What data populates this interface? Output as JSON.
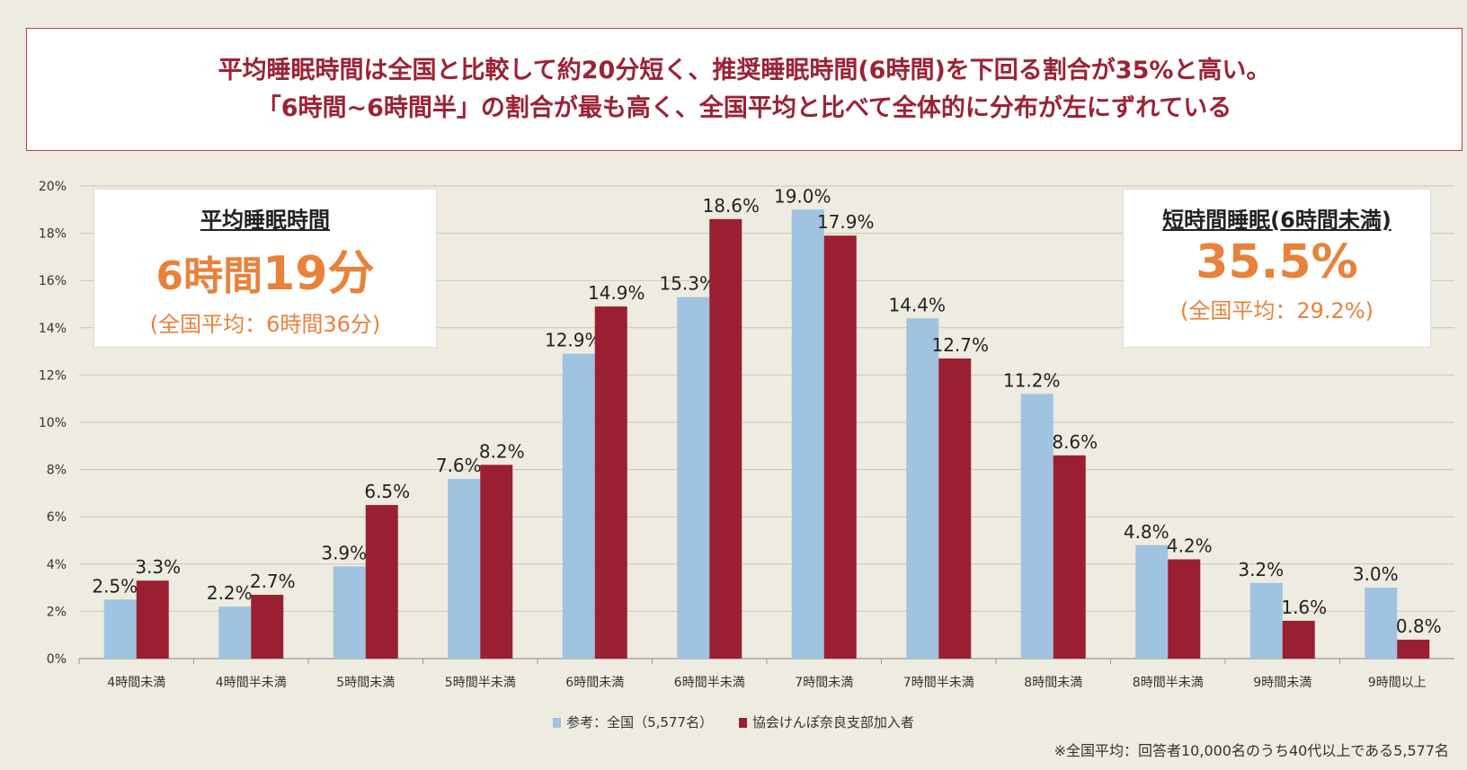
{
  "headline": {
    "line1": "平均睡眠時間は全国と比較して約20分短く、推奨睡眠時間(6時間)を下回る割合が35%と高い。",
    "line2": "「6時間~6時間半」の割合が最も高く、全国平均と比べて全体的に分布が左にずれている"
  },
  "left_box": {
    "title": "平均睡眠時間",
    "value_a": "6時間",
    "value_b": "19分",
    "sub": "(全国平均：6時間36分)"
  },
  "right_box": {
    "title": "短時間睡眠(6時間未満)",
    "value": "35.5%",
    "sub": "(全国平均：29.2%)"
  },
  "footnote": "※全国平均：回答者10,000名のうち40代以上である5,577名",
  "colors": {
    "national": "#9fc3e0",
    "nara": "#9b1f33",
    "accent": "#e8823a"
  },
  "chart_data": {
    "type": "bar",
    "categories": [
      "4時間未満",
      "4時間半未満",
      "5時間未満",
      "5時間半未満",
      "6時間未満",
      "6時間半未満",
      "7時間未満",
      "7時間半未満",
      "8時間未満",
      "8時間半未満",
      "9時間未満",
      "9時間以上"
    ],
    "series": [
      {
        "name": "参考：全国（5,577名）",
        "values": [
          2.5,
          2.2,
          3.9,
          7.6,
          12.9,
          15.3,
          19.0,
          14.4,
          11.2,
          4.8,
          3.2,
          3.0
        ],
        "labels": [
          "2.5%",
          "2.2%",
          "3.9%",
          "7.6%",
          "12.9%",
          "15.3%",
          "19.0%",
          "14.4%",
          "11.2%",
          "4.8%",
          "3.2%",
          "3.0%"
        ]
      },
      {
        "name": "協会けんぽ奈良支部加入者",
        "values": [
          3.3,
          2.7,
          6.5,
          8.2,
          14.9,
          18.6,
          17.9,
          12.7,
          8.6,
          4.2,
          1.6,
          0.8
        ],
        "labels": [
          "3.3%",
          "2.7%",
          "6.5%",
          "8.2%",
          "14.9%",
          "18.6%",
          "17.9%",
          "12.7%",
          "8.6%",
          "4.2%",
          "1.6%",
          "0.8%"
        ]
      }
    ],
    "yticks": [
      "0%",
      "2%",
      "4%",
      "6%",
      "8%",
      "10%",
      "12%",
      "14%",
      "16%",
      "18%",
      "20%"
    ],
    "ylim": [
      0,
      20
    ],
    "grid": true,
    "legend": "bottom"
  }
}
